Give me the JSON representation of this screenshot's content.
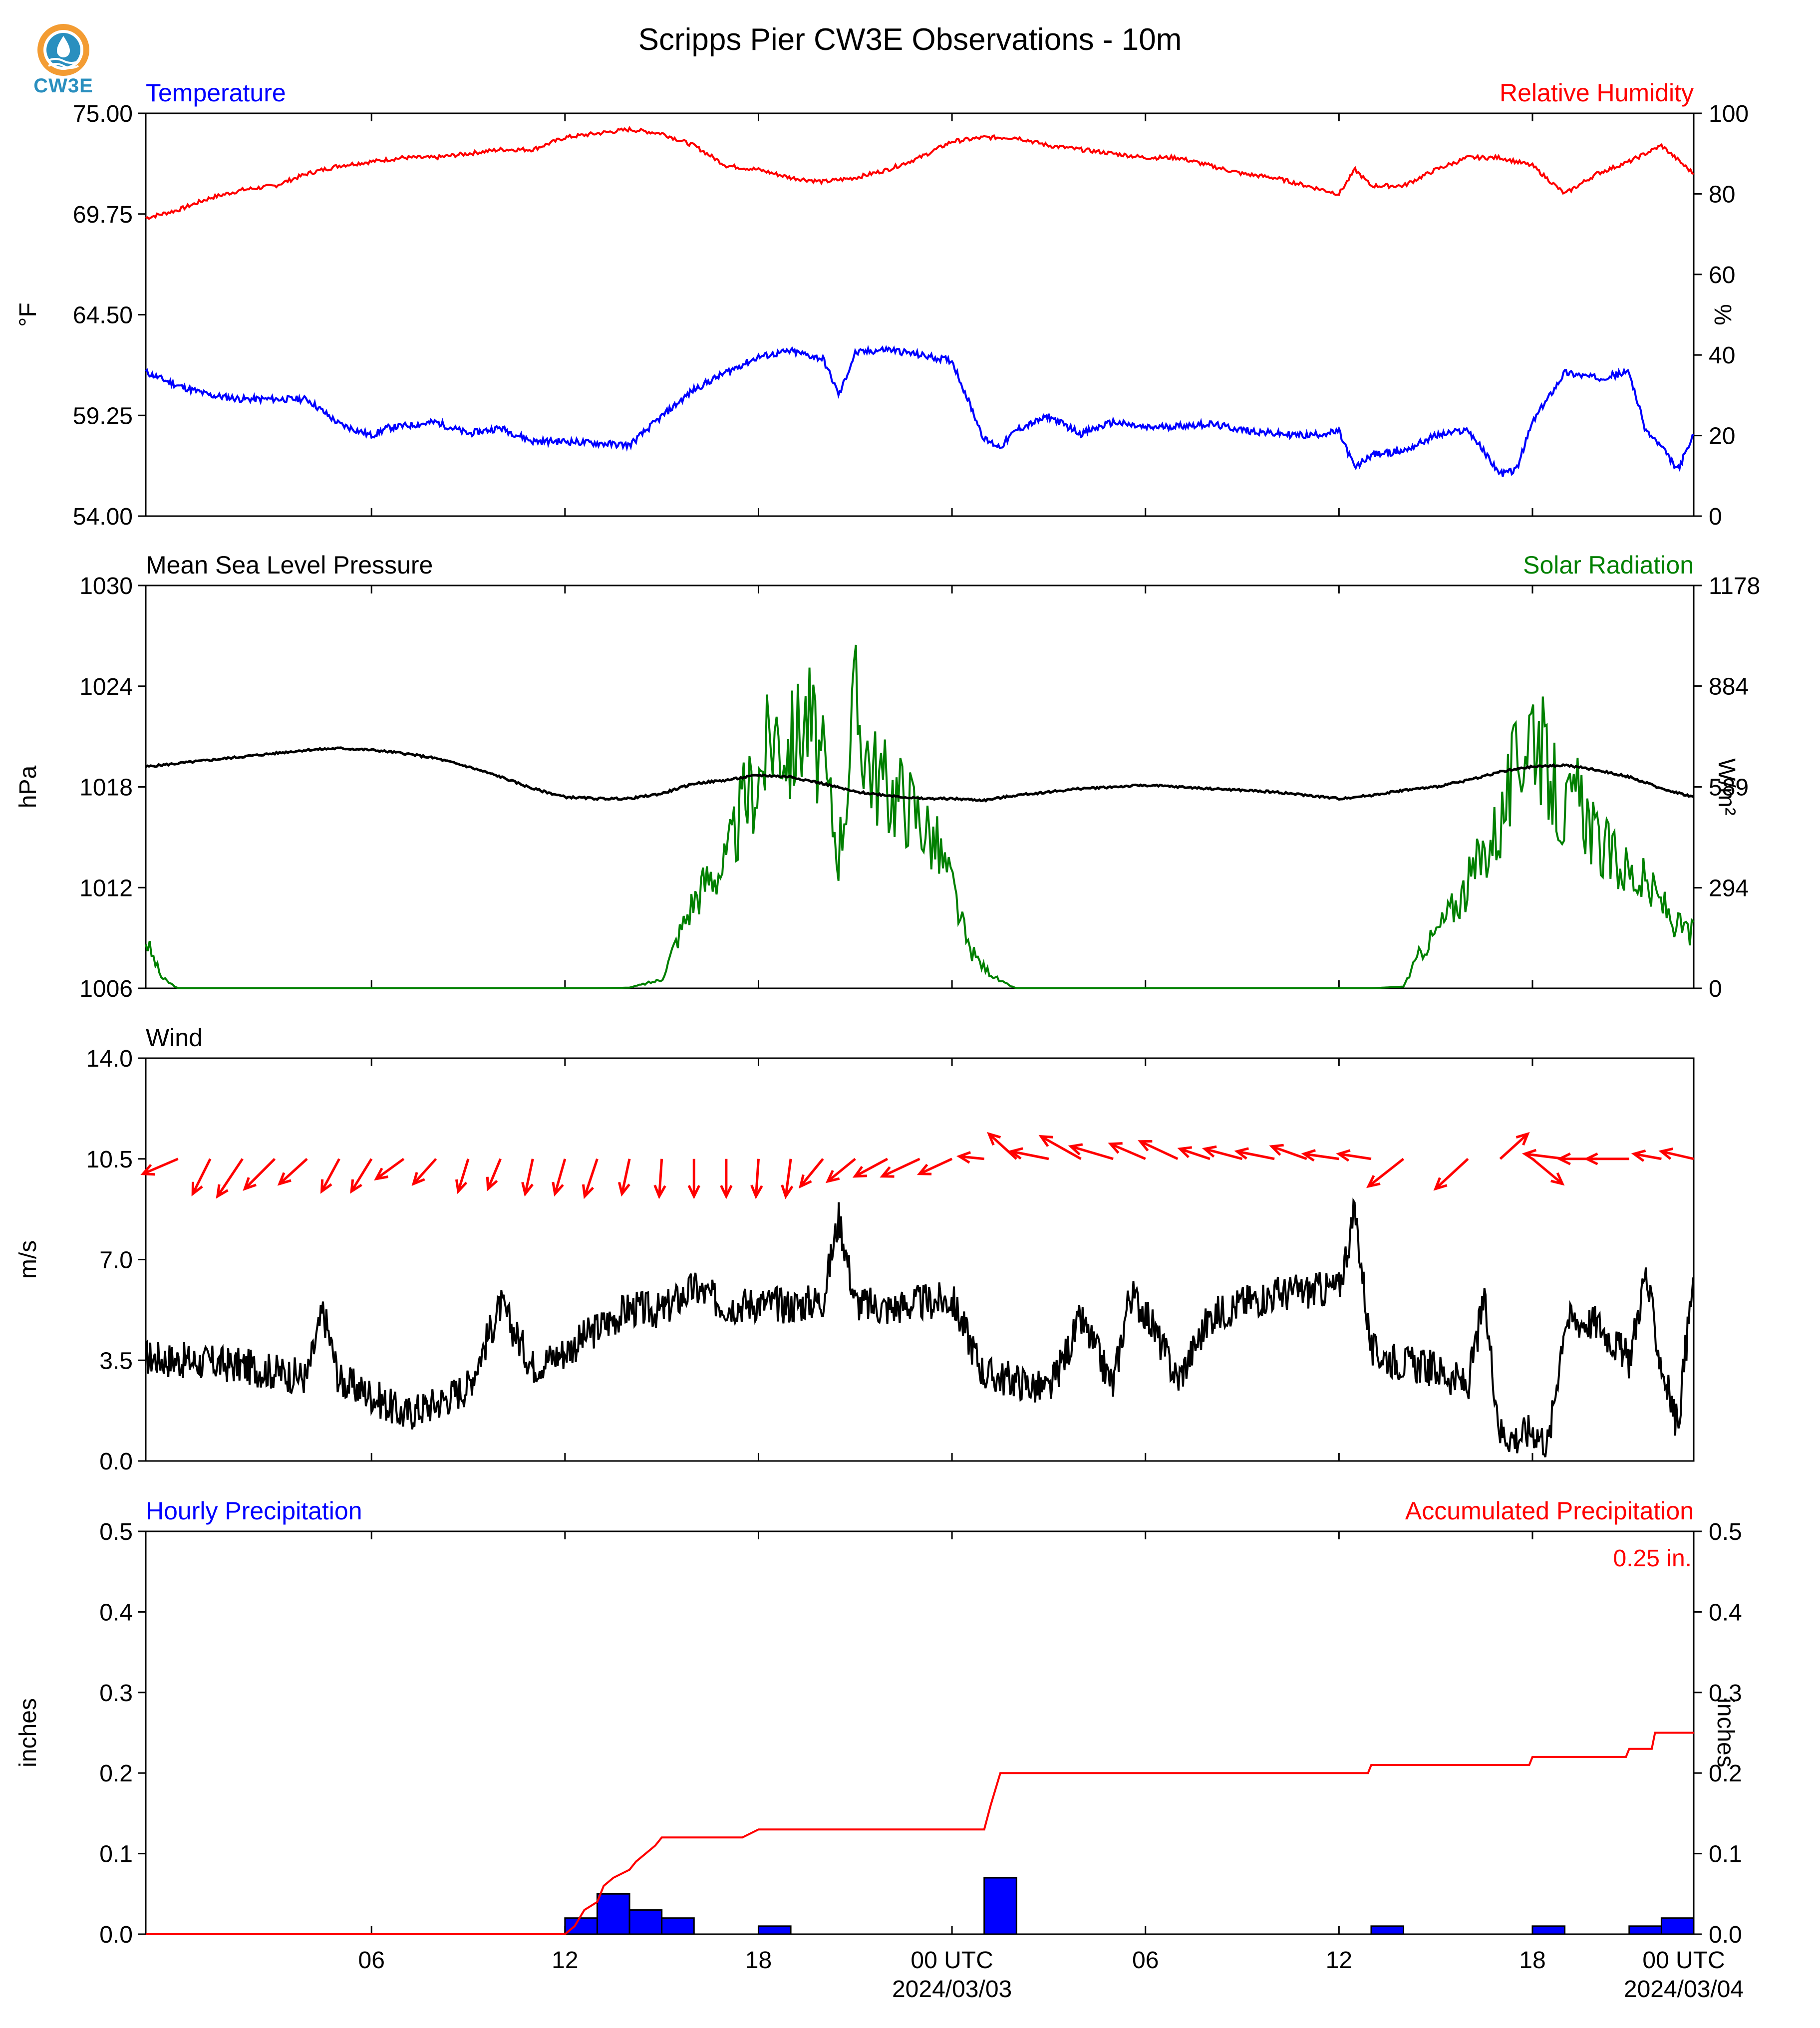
{
  "figure": {
    "title": "Scripps Pier CW3E Observations - 10m",
    "logo_text": "CW3E"
  },
  "x_axis": {
    "range_hours": [
      -7,
      41
    ],
    "ticks": [
      {
        "hour": 0,
        "label": "06",
        "sub": ""
      },
      {
        "hour": 6,
        "label": "12",
        "sub": ""
      },
      {
        "hour": 12,
        "label": "18",
        "sub": ""
      },
      {
        "hour": 18,
        "label": "00 UTC",
        "sub": "2024/03/03"
      },
      {
        "hour": 24,
        "label": "06",
        "sub": ""
      },
      {
        "hour": 30,
        "label": "12",
        "sub": ""
      },
      {
        "hour": 36,
        "label": "18",
        "sub": ""
      },
      {
        "hour": 42,
        "label": "00 UTC",
        "sub": "2024/03/04"
      }
    ]
  },
  "colors": {
    "temperature": "#0000ff",
    "humidity": "#ff0000",
    "pressure": "#000000",
    "solar": "#008000",
    "wind": "#000000",
    "wind_arrow": "#ff0000",
    "hourly_bar": "#0000ff",
    "accum": "#ff0000"
  },
  "panels": {
    "temp": {
      "left_title": "Temperature",
      "right_title": "Relative Humidity",
      "left_label": "°F",
      "right_label": "%",
      "left_ticks": [
        "54.00",
        "59.25",
        "64.50",
        "69.75",
        "75.00"
      ],
      "right_ticks": [
        "0",
        "20",
        "40",
        "60",
        "80",
        "100"
      ]
    },
    "pressure": {
      "left_title": "Mean Sea Level Pressure",
      "right_title": "Solar Radiation",
      "left_label": "hPa",
      "right_label": "W/m²",
      "left_ticks": [
        "1006",
        "1012",
        "1018",
        "1024",
        "1030"
      ],
      "right_ticks": [
        "0",
        "294",
        "589",
        "884",
        "1178"
      ]
    },
    "wind": {
      "left_title": "Wind",
      "left_label": "m/s",
      "left_ticks": [
        "0.0",
        "3.5",
        "7.0",
        "10.5",
        "14.0"
      ]
    },
    "precip": {
      "left_title": "Hourly Precipitation",
      "right_title": "Accumulated Precipitation",
      "left_label": "inches",
      "right_label": "inches",
      "left_ticks": [
        "0.0",
        "0.1",
        "0.2",
        "0.3",
        "0.4",
        "0.5"
      ],
      "right_ticks": [
        "0.0",
        "0.1",
        "0.2",
        "0.3",
        "0.4",
        "0.5"
      ],
      "total_label": "0.25 in."
    }
  },
  "chart_data": [
    {
      "type": "line",
      "title": "Temperature / Relative Humidity",
      "x_unit": "hours after 06 UTC 2024/03/02",
      "ylim": [
        54,
        75
      ],
      "y2lim": [
        0,
        100
      ],
      "series": [
        {
          "name": "Temperature",
          "axis": "left",
          "x": [
            -7,
            -6,
            -5,
            -4,
            -3,
            -2,
            -1,
            0,
            0.5,
            1,
            2,
            3,
            4,
            5,
            6,
            7,
            8,
            9,
            10,
            11,
            12,
            13,
            14,
            14.5,
            15,
            16,
            17,
            18,
            19,
            19.5,
            20,
            21,
            22,
            23,
            24,
            25,
            26,
            27,
            28,
            29,
            30,
            30.5,
            31,
            32,
            33,
            34,
            35,
            35.5,
            36,
            37,
            38,
            39,
            39.5,
            40,
            40.5,
            41
          ],
          "y": [
            61.5,
            60.8,
            60.3,
            60.1,
            60.1,
            60.1,
            58.8,
            58.2,
            58.6,
            58.7,
            58.9,
            58.3,
            58.6,
            57.9,
            57.9,
            57.8,
            57.7,
            59.2,
            60.6,
            61.5,
            62.3,
            62.6,
            62.2,
            60.3,
            62.5,
            62.7,
            62.4,
            62.1,
            58.0,
            57.6,
            58.5,
            59.2,
            58.3,
            58.9,
            58.6,
            58.7,
            58.8,
            58.5,
            58.3,
            58.2,
            58.4,
            56.5,
            57.2,
            57.4,
            58.2,
            58.5,
            56.2,
            56.4,
            58.9,
            61.5,
            61.2,
            61.5,
            58.5,
            57.6,
            56.4,
            58.2
          ]
        },
        {
          "name": "Relative Humidity",
          "axis": "right",
          "x": [
            -7,
            -6,
            -5,
            -4,
            -3,
            -2,
            -1,
            0,
            1,
            2,
            3,
            4,
            5,
            6,
            7,
            8,
            9,
            10,
            11,
            12,
            13,
            14,
            15,
            16,
            17,
            18,
            19,
            20,
            21,
            22,
            23,
            24,
            25,
            26,
            27,
            28,
            29,
            30,
            30.5,
            31,
            32,
            33,
            34,
            35,
            36,
            37,
            38,
            39,
            40,
            41
          ],
          "y": [
            74,
            76,
            79,
            81,
            82,
            85,
            87,
            88,
            89,
            89,
            90,
            91,
            91,
            94,
            95,
            96,
            95,
            92,
            87,
            86,
            84,
            83,
            84,
            86,
            89,
            93,
            94,
            94,
            92,
            91,
            90,
            89,
            89,
            87,
            85,
            84,
            82,
            80,
            86,
            82,
            82,
            86,
            89,
            89,
            87,
            80,
            85,
            88,
            92,
            85
          ]
        }
      ]
    },
    {
      "type": "line",
      "title": "Mean Sea Level Pressure / Solar Radiation",
      "x_unit": "hours after 06 UTC 2024/03/02",
      "ylim": [
        1006,
        1030
      ],
      "y2lim": [
        0,
        1178
      ],
      "series": [
        {
          "name": "Mean Sea Level Pressure",
          "axis": "left",
          "x": [
            -7,
            -6,
            -5,
            -4,
            -3,
            -2,
            -1,
            0,
            1,
            2,
            3,
            4,
            5,
            6,
            7,
            8,
            9,
            10,
            11,
            12,
            13,
            14,
            15,
            16,
            17,
            18,
            19,
            20,
            21,
            22,
            23,
            24,
            25,
            26,
            27,
            28,
            29,
            30,
            31,
            32,
            33,
            34,
            35,
            36,
            37,
            38,
            39,
            40,
            41
          ],
          "y": [
            1019.2,
            1019.4,
            1019.6,
            1019.8,
            1020.0,
            1020.2,
            1020.3,
            1020.2,
            1020.0,
            1019.7,
            1019.2,
            1018.6,
            1017.9,
            1017.4,
            1017.3,
            1017.3,
            1017.6,
            1018.2,
            1018.4,
            1018.7,
            1018.6,
            1018.2,
            1017.7,
            1017.5,
            1017.3,
            1017.3,
            1017.2,
            1017.5,
            1017.7,
            1017.9,
            1018.0,
            1018.1,
            1018.0,
            1017.9,
            1017.8,
            1017.7,
            1017.5,
            1017.3,
            1017.5,
            1017.8,
            1018.0,
            1018.4,
            1018.9,
            1019.2,
            1019.3,
            1019.0,
            1018.6,
            1017.9,
            1017.4
          ]
        },
        {
          "name": "Solar Radiation",
          "axis": "right",
          "x": [
            -7,
            -6.5,
            -6,
            -5,
            -4,
            -3,
            -2,
            -1,
            0,
            1,
            2,
            3,
            4,
            5,
            6,
            7,
            8,
            9,
            9.5,
            10,
            10.5,
            11,
            11.5,
            12,
            12.5,
            13,
            13.5,
            14,
            14.5,
            15,
            15.5,
            16,
            16.5,
            17,
            17.5,
            18,
            18.5,
            19,
            19.5,
            20,
            21,
            22,
            23,
            24,
            25,
            26,
            27,
            28,
            29,
            30,
            31,
            32,
            32.5,
            33,
            33.5,
            34,
            34.5,
            35,
            35.5,
            36,
            36.5,
            37,
            37.5,
            38,
            38.5,
            39,
            39.5,
            40,
            40.5,
            41
          ],
          "y": [
            140,
            30,
            0,
            0,
            0,
            0,
            0,
            0,
            0,
            0,
            0,
            0,
            0,
            0,
            0,
            0,
            2,
            25,
            150,
            260,
            330,
            360,
            530,
            620,
            760,
            700,
            800,
            640,
            400,
            830,
            650,
            580,
            560,
            500,
            420,
            300,
            120,
            60,
            20,
            0,
            0,
            0,
            0,
            0,
            0,
            0,
            0,
            0,
            0,
            0,
            0,
            5,
            100,
            160,
            230,
            300,
            400,
            480,
            650,
            800,
            620,
            500,
            560,
            420,
            380,
            340,
            300,
            250,
            180,
            160
          ]
        }
      ]
    },
    {
      "type": "line",
      "title": "Wind",
      "x_unit": "hours after 06 UTC 2024/03/02",
      "ylim": [
        0,
        14
      ],
      "series": [
        {
          "name": "Wind Speed",
          "axis": "left",
          "x": [
            -7,
            -6,
            -5,
            -4,
            -3,
            -2,
            -1.5,
            -1,
            0,
            1,
            2,
            3,
            4,
            5,
            6,
            7,
            8,
            9,
            10,
            11,
            12,
            13,
            14,
            14.5,
            15,
            16,
            17,
            18,
            19,
            20,
            21,
            22,
            23,
            23.5,
            24,
            25,
            26,
            27,
            28,
            29,
            30,
            30.5,
            31,
            32,
            33,
            34,
            34.5,
            35,
            35.5,
            36,
            36.5,
            37,
            38,
            39,
            39.5,
            40,
            40.5,
            41
          ],
          "y": [
            3.6,
            3.5,
            3.4,
            3.3,
            3.1,
            2.9,
            5.2,
            2.8,
            2.3,
            1.6,
            2.0,
            2.6,
            5.4,
            3.3,
            3.8,
            4.6,
            5.3,
            5.2,
            6.0,
            5.4,
            5.5,
            5.4,
            5.6,
            8.5,
            5.5,
            5.3,
            5.5,
            5.6,
            3.0,
            2.8,
            2.4,
            4.9,
            2.6,
            5.8,
            5.2,
            2.8,
            5.0,
            5.5,
            5.8,
            5.9,
            6.0,
            8.7,
            3.8,
            3.4,
            3.2,
            2.6,
            5.6,
            1.0,
            0.8,
            1.1,
            0.6,
            4.9,
            4.8,
            3.5,
            6.5,
            3.3,
            1.2,
            6.5
          ]
        },
        {
          "name": "Wind Direction",
          "axis": "arrows",
          "x": [
            -6,
            -5,
            -4,
            -3,
            -2,
            -1,
            0,
            1,
            2,
            3,
            4,
            5,
            6,
            7,
            8,
            9,
            10,
            11,
            12,
            13,
            14,
            15,
            16,
            17,
            18,
            19,
            20,
            21,
            22,
            23,
            24,
            25,
            26,
            27,
            28,
            29,
            30,
            31,
            32,
            34,
            35,
            36,
            37,
            38,
            39,
            40,
            41
          ],
          "u": [
            -1.4,
            -0.7,
            -1.0,
            -1.2,
            -1.1,
            -0.7,
            -0.8,
            -1.1,
            -0.9,
            -0.4,
            -0.5,
            -0.3,
            -0.4,
            -0.5,
            -0.3,
            -0.1,
            0.0,
            0.0,
            -0.1,
            -0.2,
            -0.9,
            -1.1,
            -1.3,
            -1.5,
            -1.3,
            -1.0,
            -1.1,
            -1.5,
            -1.6,
            -1.7,
            -1.4,
            -1.5,
            -1.2,
            -1.5,
            -1.5,
            -1.4,
            -1.4,
            -1.3,
            -1.4,
            -1.3,
            1.1,
            1.2,
            -1.6,
            -1.5,
            -1.7,
            -1.1,
            -1.3
          ],
          "v": [
            0.6,
            1.4,
            1.5,
            1.2,
            1.0,
            1.3,
            1.3,
            0.8,
            1.0,
            1.3,
            1.2,
            1.4,
            1.4,
            1.5,
            1.4,
            1.5,
            1.5,
            1.5,
            1.5,
            1.5,
            1.1,
            0.9,
            0.7,
            0.7,
            0.6,
            -0.1,
            -1.0,
            -0.3,
            -0.9,
            -0.5,
            -0.6,
            -0.7,
            -0.4,
            -0.4,
            -0.3,
            -0.5,
            -0.2,
            -0.2,
            1.1,
            1.2,
            -1.0,
            1.0,
            -0.2,
            0.0,
            0.0,
            -0.2,
            -0.3
          ]
        }
      ]
    },
    {
      "type": "bar",
      "title": "Hourly Precipitation / Accumulated Precipitation",
      "x_unit": "hours after 06 UTC 2024/03/02",
      "ylim": [
        0,
        0.5
      ],
      "y2lim": [
        0,
        0.5
      ],
      "series": [
        {
          "name": "Hourly Precipitation",
          "axis": "left",
          "x": [
            6,
            7,
            8,
            9,
            12,
            19,
            31,
            36,
            39,
            40
          ],
          "y": [
            0.02,
            0.05,
            0.03,
            0.02,
            0.01,
            0.07,
            0.01,
            0.01,
            0.01,
            0.02
          ]
        },
        {
          "name": "Accumulated Precipitation",
          "axis": "right",
          "x": [
            -7,
            5.5,
            6,
            6.3,
            6.6,
            7.0,
            7.2,
            7.5,
            8.0,
            8.2,
            8.5,
            8.8,
            9.0,
            11.5,
            12.0,
            19.0,
            19.2,
            19.5,
            30.9,
            31.0,
            35.9,
            36.0,
            38.9,
            39.0,
            39.7,
            39.8,
            41
          ],
          "y": [
            0,
            0,
            0,
            0.01,
            0.03,
            0.04,
            0.06,
            0.07,
            0.08,
            0.09,
            0.1,
            0.11,
            0.12,
            0.12,
            0.13,
            0.13,
            0.16,
            0.2,
            0.2,
            0.21,
            0.21,
            0.22,
            0.22,
            0.23,
            0.23,
            0.25,
            0.25
          ]
        }
      ]
    }
  ]
}
